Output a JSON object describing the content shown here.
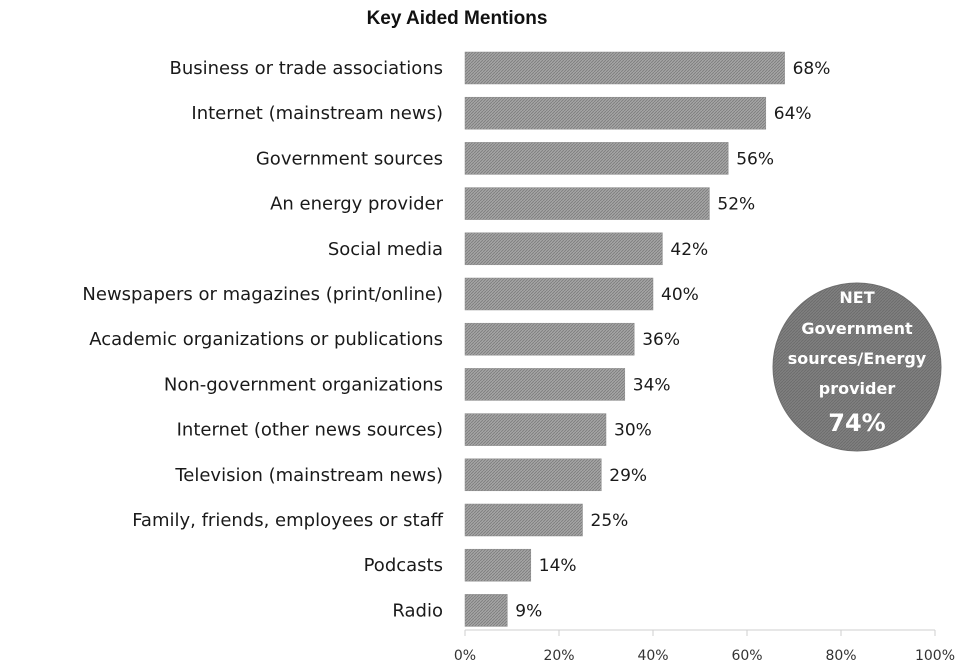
{
  "chart_data": {
    "type": "bar",
    "orientation": "horizontal",
    "title": "Key Aided Mentions",
    "categories": [
      "Business or trade associations",
      "Internet (mainstream news)",
      "Government sources",
      "An energy provider",
      "Social media",
      "Newspapers or magazines (print/online)",
      "Academic organizations or publications",
      "Non-government organizations",
      "Internet (other news sources)",
      "Television (mainstream news)",
      "Family, friends, employees or staff",
      "Podcasts",
      "Radio"
    ],
    "values": [
      68,
      64,
      56,
      52,
      42,
      40,
      36,
      34,
      30,
      29,
      25,
      14,
      9
    ],
    "value_labels": [
      "68%",
      "64%",
      "56%",
      "52%",
      "42%",
      "40%",
      "36%",
      "34%",
      "30%",
      "29%",
      "25%",
      "14%",
      "9%"
    ],
    "xlim": [
      0,
      100
    ],
    "xticks": [
      0,
      20,
      40,
      60,
      80,
      100
    ],
    "xtick_labels": [
      "0%",
      "20%",
      "40%",
      "60%",
      "80%",
      "100%"
    ],
    "grid": false,
    "legend": "none",
    "bar_color": "#9a9a9a",
    "annotation": {
      "lines": [
        "NET",
        "Government",
        "sources/Energy",
        "provider"
      ],
      "value": "74%",
      "color": "#7a7a7a"
    }
  }
}
